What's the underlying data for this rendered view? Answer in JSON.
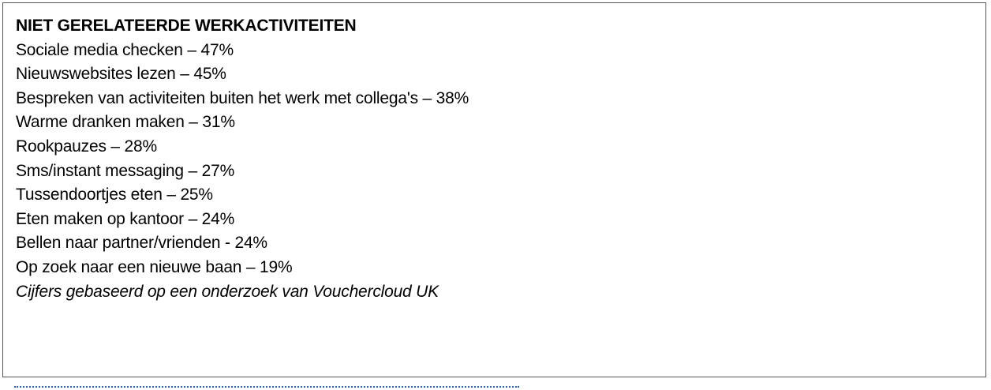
{
  "title": "NIET GERELATEERDE WERKACTIVITEITEN",
  "items": [
    "Sociale media checken – 47%",
    "Nieuwswebsites lezen – 45%",
    "Bespreken van activiteiten buiten het werk met collega's – 38%",
    "Warme dranken maken – 31%",
    "Rookpauzes – 28%",
    "Sms/instant messaging – 27%",
    "Tussendoortjes eten – 25%",
    "Eten maken op kantoor – 24%",
    "Bellen naar partner/vrienden - 24%",
    "Op zoek naar een nieuwe baan – 19%"
  ],
  "note": "Cijfers gebaseerd op een onderzoek van Vouchercloud UK",
  "colors": {
    "border": "#555555",
    "link": "#2a5fc8"
  }
}
